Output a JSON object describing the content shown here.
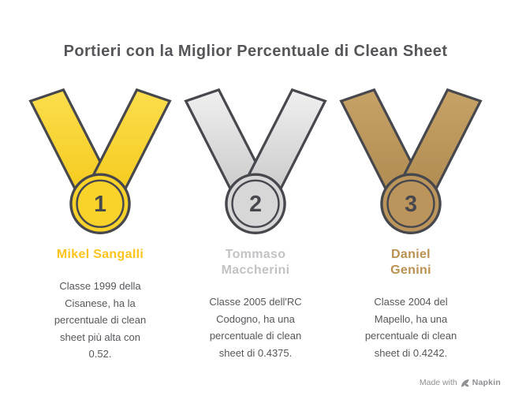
{
  "title": {
    "text": "Portieri con la Miglior Percentuale di Clean Sheet",
    "color": "#55565A"
  },
  "medals": [
    {
      "rank": "1",
      "metal": "gold",
      "name_lines": [
        "Mikel Sangalli"
      ],
      "name_color": "#FFC31E",
      "description_lines": [
        "Classe 1999 della",
        "Cisanese, ha la",
        "percentuale di clean",
        "sheet più alta con",
        "0.52."
      ],
      "colors": {
        "ribbon_light": "#FCDE4D",
        "ribbon_dark": "#F3C817",
        "circle": "#FAD32A"
      }
    },
    {
      "rank": "2",
      "metal": "silver",
      "name_lines": [
        "Tommaso",
        "Maccherini"
      ],
      "name_color": "#C3C3C5",
      "description_lines": [
        "Classe 2005 dell'RC",
        "Codogno, ha una",
        "percentuale di clean",
        "sheet di 0.4375."
      ],
      "colors": {
        "ribbon_light": "#F0F0F0",
        "ribbon_dark": "#C5C5C6",
        "circle": "#D7D7D8"
      }
    },
    {
      "rank": "3",
      "metal": "bronze",
      "name_lines": [
        "Daniel",
        "Genini"
      ],
      "name_color": "#BA9151",
      "description_lines": [
        "Classe 2004 del",
        "Mapello, ha una",
        "percentuale di clean",
        "sheet di 0.4242."
      ],
      "colors": {
        "ribbon_light": "#C7A267",
        "ribbon_dark": "#AD894F",
        "circle": "#BC955C"
      }
    }
  ],
  "styles": {
    "outline": "#47484E",
    "description_color": "#55575B",
    "background": "#FFFFFF"
  },
  "watermark": {
    "made_with": "Made with",
    "brand": "Napkin",
    "logo_icon": "napkin-pen-icon",
    "color": "#8D8F93"
  }
}
